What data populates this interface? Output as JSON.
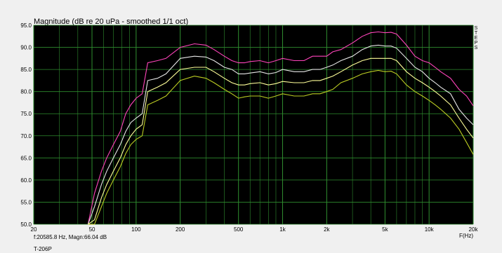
{
  "chart_data": {
    "type": "line",
    "title": "Magnitude (dB re 20 uPa - smoothed 1/1 oct)",
    "xlabel": "F(Hz)",
    "ylabel": "",
    "xscale": "log",
    "xlim": [
      20,
      20000
    ],
    "ylim": [
      50,
      95
    ],
    "grid": true,
    "background": "#000000",
    "grid_color": "#2e8b2e",
    "yticks": [
      "95.0",
      "90.0",
      "85.0",
      "80.0",
      "75.0",
      "70.0",
      "65.0",
      "60.0",
      "55.0",
      "50.0"
    ],
    "ytick_values": [
      95,
      90,
      85,
      80,
      75,
      70,
      65,
      60,
      55,
      50
    ],
    "xticks": [
      "20",
      "50",
      "100",
      "200",
      "500",
      "1k",
      "2k",
      "5k",
      "10k",
      "20k"
    ],
    "xtick_values": [
      20,
      50,
      100,
      200,
      500,
      1000,
      2000,
      5000,
      10000,
      20000
    ],
    "side_label": [
      "S",
      "T",
      "E",
      "P",
      "S"
    ],
    "x": [
      47,
      52,
      58,
      63,
      70,
      78,
      85,
      92,
      100,
      110,
      120,
      140,
      160,
      200,
      250,
      300,
      340,
      400,
      450,
      500,
      550,
      600,
      700,
      800,
      900,
      1000,
      1200,
      1400,
      1600,
      1800,
      2000,
      2200,
      2500,
      3000,
      3500,
      4000,
      4500,
      5000,
      5500,
      6000,
      7000,
      8000,
      9000,
      10000,
      11000,
      12000,
      14000,
      16000,
      18000,
      20000
    ],
    "series": [
      {
        "color": "#ff44bb",
        "values": [
          50,
          57,
          62,
          65,
          68,
          71,
          75,
          77,
          78.5,
          79.5,
          86.5,
          87,
          87.5,
          90,
          90.8,
          90.5,
          89.5,
          88,
          87,
          86.5,
          86.5,
          86.8,
          87,
          86.5,
          87,
          87.5,
          87,
          87,
          88,
          88,
          88,
          89,
          89.5,
          91,
          92.5,
          93.3,
          93.5,
          93.3,
          93.4,
          93,
          90.5,
          88,
          87,
          86.5,
          85.5,
          84.5,
          83,
          80.5,
          79,
          76.8
        ]
      },
      {
        "color": "#e6e6e6",
        "values": [
          48,
          54,
          59,
          62,
          65,
          68,
          71,
          73,
          74,
          75,
          82.5,
          83,
          84,
          87.5,
          88,
          87.8,
          87,
          85.5,
          85,
          84,
          84,
          84.2,
          84.5,
          84,
          84.3,
          85,
          84.5,
          84.5,
          85,
          85,
          85.5,
          86,
          87,
          88,
          89.5,
          90.3,
          90.5,
          90.3,
          90.3,
          89.8,
          87.5,
          85.5,
          84.5,
          83,
          82,
          81,
          79.5,
          76,
          74,
          72.5
        ]
      },
      {
        "color": "#ffff99",
        "values": [
          46,
          51,
          56,
          59,
          62,
          65,
          68,
          70,
          71.5,
          72.5,
          80,
          81,
          82,
          85,
          85.5,
          85.5,
          84.5,
          83,
          82,
          81.5,
          81.5,
          81.8,
          82,
          81.5,
          81.8,
          82.3,
          82,
          82,
          82.5,
          82.5,
          83,
          83.5,
          84.5,
          86,
          87,
          87.5,
          87.5,
          87.5,
          87.5,
          87,
          84.5,
          83,
          82,
          81,
          80,
          79,
          77,
          74,
          71.5,
          69.5
        ]
      },
      {
        "color": "#bbcc22",
        "values": [
          44,
          49,
          54,
          57,
          60,
          63,
          66,
          68,
          69.2,
          70,
          77,
          78,
          79,
          82.5,
          83.5,
          83,
          82,
          80.5,
          79.5,
          78.5,
          78.8,
          79,
          79,
          78.5,
          79,
          79.5,
          79,
          79,
          79.5,
          79.5,
          80,
          80.5,
          82,
          83,
          84,
          84.5,
          84.8,
          84.5,
          84.6,
          84,
          81.5,
          80,
          79,
          78,
          77,
          76,
          74,
          71.5,
          68.5,
          65.8
        ]
      }
    ]
  },
  "readout": "f:20585.8 Hz, Magn:66.04 dB",
  "footer": "T-206P"
}
